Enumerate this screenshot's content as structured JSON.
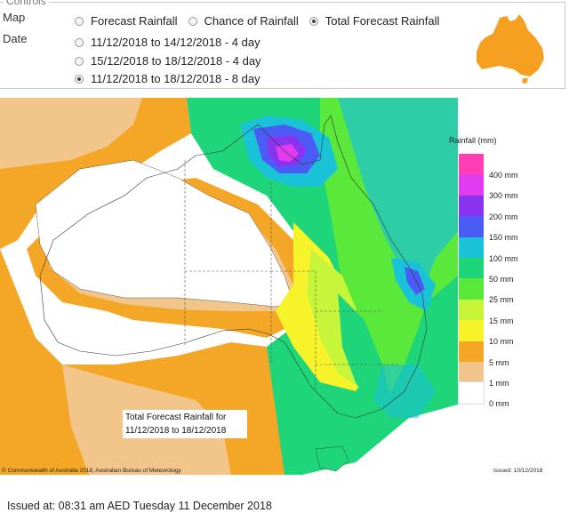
{
  "controls": {
    "legend": "Controls",
    "map_label": "Map",
    "date_label": "Date",
    "map_options": [
      {
        "label": "Forecast Rainfall",
        "checked": false
      },
      {
        "label": "Chance of Rainfall",
        "checked": false
      },
      {
        "label": "Total Forecast Rainfall",
        "checked": true
      }
    ],
    "date_options": [
      {
        "label": "11/12/2018 to 14/12/2018 - 4 day",
        "checked": false
      },
      {
        "label": "15/12/2018 to 18/12/2018 - 4 day",
        "checked": false
      },
      {
        "label": "11/12/2018 to 18/12/2018 - 8 day",
        "checked": true
      }
    ],
    "icon": "australia-map-icon",
    "icon_color": "#f5a020"
  },
  "map": {
    "legend_title": "Rainfall (mm)",
    "legend": [
      {
        "label": "400 mm",
        "color": "#ff3eb5"
      },
      {
        "label": "300 mm",
        "color": "#e23cf0"
      },
      {
        "label": "200 mm",
        "color": "#8a34f0"
      },
      {
        "label": "150 mm",
        "color": "#4a5cf5"
      },
      {
        "label": "100 mm",
        "color": "#19c2d6"
      },
      {
        "label": "50 mm",
        "color": "#1fd57a"
      },
      {
        "label": "25 mm",
        "color": "#5ae83a"
      },
      {
        "label": "15 mm",
        "color": "#c6f53a"
      },
      {
        "label": "10 mm",
        "color": "#f7f32a"
      },
      {
        "label": "5 mm",
        "color": "#f4a726"
      },
      {
        "label": "1 mm",
        "color": "#f2c58a"
      },
      {
        "label": "0 mm",
        "color": "#ffffff"
      }
    ],
    "caption_line1": "Total Forecast Rainfall for",
    "caption_line2": "11/12/2018 to 18/12/2018",
    "copyright": "© Commonwealth of Australia 2018, Australian Bureau of Meteorology",
    "issued_short": "Issued: 10/12/2018"
  },
  "footer": {
    "issued": "Issued at: 08:31 am AED Tuesday 11 December 2018"
  }
}
